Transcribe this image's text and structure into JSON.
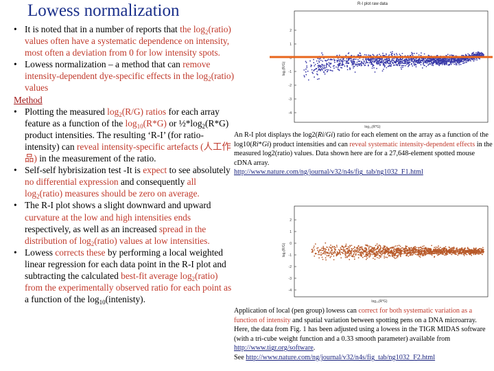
{
  "slide": {
    "title": "Lowess normalization",
    "p1": {
      "a": "It is noted that in a number of reports that ",
      "b": "the log",
      "b_sub": "2",
      "c": "(ratio) values often have a systematic dependence on intensity, most often a deviation from 0 for low intensity spots."
    },
    "p2": {
      "a": "Lowess normalization – a method that can ",
      "b": "remove intensity-dependent dye-specific effects in the log",
      "b_sub": "2",
      "c": "(ratio) values"
    },
    "method_heading": "Method",
    "p3": {
      "a": "Plotting the measured ",
      "b": "log",
      "b_sub": "2",
      "c": "(R/G) ratios",
      "d": " for each array feature as a function of the ",
      "e": "log",
      "e_sub": "10",
      "f": "(R*G)",
      "g": " or ½*log",
      "g_sub": "2",
      "h": "(R*G) product intensities. The resulting ‘R-I’ (for ratio-intensity) can ",
      "i": "reveal intensity-specific artefacts (人工作品)",
      "j": " in the measurement of the ratio."
    },
    "p4": {
      "a": "Self-self hybrisization test -It is ",
      "b": "expect",
      "c": " to see absolutely ",
      "d": "no differential expression",
      "e": " and consequently ",
      "f": "all log",
      "f_sub": "2",
      "g": "(ratio) measures should be zero on average."
    },
    "p5": {
      "a": "The R-I plot shows a slight downward and upward ",
      "b": "curvature at the low and high intensities ends",
      "c": " respectively, as well as an increased ",
      "d": "spread in the distribution of log",
      "d_sub": "2",
      "e": "(ratio) values at low intensities."
    },
    "p6": {
      "a": "Lowess ",
      "b": "corrects these",
      "c": " by performing a local weighted linear regression for each data point in the R-I plot and subtracting the calculated ",
      "d": "best-fit average log",
      "d_sub": "2",
      "e": "(ratio) from the experimentally observed ratio ",
      "f": "for each point as",
      "g": " a function of the log",
      "g_sub": "10",
      "h": "(intenisty)."
    }
  },
  "plot1": {
    "title": "R-I plot raw data",
    "ylabel": "log₂(R/G)",
    "xlabel": "log₁₀(R*G)",
    "y_ticks": [
      "2",
      "1",
      "0",
      "-1",
      "-2",
      "-3",
      "-4"
    ],
    "point_color": "#3a3aa8",
    "line_color": "#e8661c"
  },
  "plot2": {
    "title": "",
    "ylabel": "log₂(R/G)",
    "xlabel": "log₁₀(R*G)",
    "y_ticks": [
      "2",
      "1",
      "0",
      "-1",
      "-2",
      "-3",
      "-4"
    ],
    "point_color": "#b85a2a"
  },
  "caption1": {
    "a": "An R-I plot displays the log2(",
    "b": "Ri",
    "c": "/",
    "d": "Gi",
    "e": ") ratio for each element on the array as a function of the log10(",
    "f": "Ri",
    "g": "*",
    "h": "Gi",
    "i": ") product intensities and can ",
    "j": "reveal systematic intensity-dependent effects",
    "k": " in the measured log2(ratio) values. Data shown here are for a 27,648-element spotted mouse cDNA array.",
    "link": "http://www.nature.com/ng/journal/v32/n4s/fig_tab/ng1032_F1.html"
  },
  "caption2": {
    "a": "Application of local (pen group) lowess can ",
    "b": "correct for both systematic variation as a function of intensity",
    "c": " and spatial variation between spotting pens on a DNA microarray. Here, the data from Fig. 1 has been adjusted using a lowess in the TIGR MIDAS software (with a tri-cube weight function and a 0.33 smooth parameter) available from ",
    "link_a": "http://www.tigr.org/software",
    "d": ".",
    "e": "See ",
    "link_b": "http://www.nature.com/ng/journal/v32/n4s/fig_tab/ng1032_F2.html"
  }
}
